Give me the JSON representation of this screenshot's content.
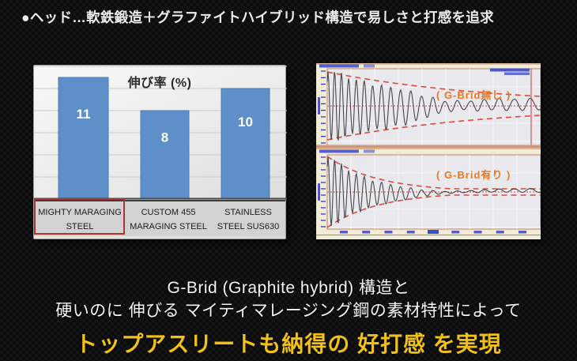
{
  "header": {
    "text": "●ヘッド…軟鉄鍛造＋グラファイトハイブリッド構造で易しさと打感を追求"
  },
  "colors": {
    "bar_fill": "#5e8fc9",
    "bar_stroke": "#4d7db8",
    "bar_value_label": "#ffffff",
    "bar_grid": "#c8c8c8",
    "bar_axis": "#4a4a4a",
    "highlight_box": "#b23232",
    "panel_cream": "#f0ecd8",
    "plot_bg": "#e9e9ed",
    "plot_grid": "#f8f8fa",
    "plot_border": "#c4805e",
    "wave_line": "#474747",
    "envelope_red": "#d94b3c",
    "center_line_red": "#c23c3c",
    "tick_blue": "#2a2ab8",
    "badge_blue": "#3946c8",
    "label_orange": "#e87820",
    "accent_yellow": "#f2c115"
  },
  "chart_data": [
    {
      "type": "bar",
      "title": "伸び率 (%)",
      "categories": [
        "MIGHTY MARAGING STEEL",
        "CUSTOM 455 MARAGING STEEL",
        "STAINLESS STEEL SUS630"
      ],
      "values": [
        11,
        8,
        10
      ],
      "ylim": [
        0,
        12
      ],
      "gridline_step": 2,
      "grid": true,
      "highlighted_category_index": 0,
      "value_labels_shown": [
        11,
        8,
        10
      ]
    },
    {
      "type": "line",
      "name": "vibration-decay-without-gbrid",
      "label": "( G-Brid無し )",
      "waveform": "damped-oscillation",
      "envelope": {
        "initial": 43,
        "final": 12,
        "decay_length": 211,
        "floor": 0
      },
      "period": {
        "start": 8,
        "growth": 0.05
      },
      "has_cursor_line": true,
      "y_axis_tick_count": 12,
      "x_axis_tick_count": 0
    },
    {
      "type": "line",
      "name": "vibration-decay-with-gbrid",
      "label": "( G-Brid有り )",
      "waveform": "damped-oscillation",
      "envelope": {
        "initial": 45,
        "final": 4,
        "decay_length": 65,
        "floor": 4
      },
      "period": {
        "start": 8,
        "growth": 0.05
      },
      "has_cursor_line": false,
      "y_axis_tick_count": 12,
      "x_axis_tick_count": 9
    }
  ],
  "footer": {
    "line1": "G-Brid (Graphite hybrid) 構造と",
    "line2": "硬いのに 伸びる マイティマレージング鋼の素材特性によって",
    "line3": "トップアスリートも納得の 好打感 を実現"
  }
}
